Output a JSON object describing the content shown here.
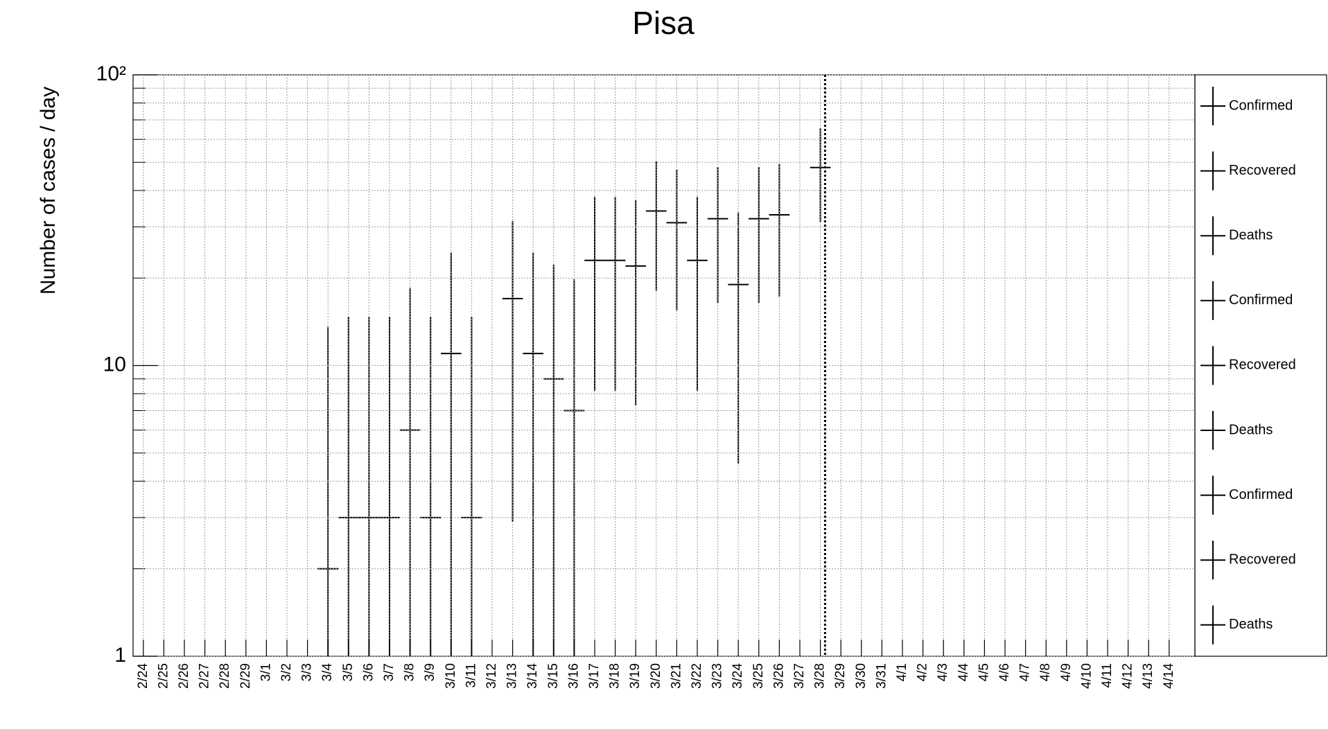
{
  "chart_data": {
    "type": "errorbar",
    "title": "Pisa",
    "y_label": "Number of cases / day",
    "log_y": true,
    "grid": true,
    "color": "#000000",
    "categories": [
      "2/24",
      "2/25",
      "2/26",
      "2/27",
      "2/28",
      "2/29",
      "3/1",
      "3/2",
      "3/3",
      "3/4",
      "3/5",
      "3/6",
      "3/7",
      "3/8",
      "3/9",
      "3/10",
      "3/11",
      "3/12",
      "3/13",
      "3/14",
      "3/15",
      "3/16",
      "3/17",
      "3/18",
      "3/19",
      "3/20",
      "3/21",
      "3/22",
      "3/23",
      "3/24",
      "3/25",
      "3/26",
      "3/27",
      "3/28",
      "3/29",
      "3/30",
      "3/31",
      "4/1",
      "4/2",
      "4/3",
      "4/4",
      "4/5",
      "4/6",
      "4/7",
      "4/8",
      "4/9",
      "4/10",
      "4/11",
      "4/12",
      "4/13",
      "4/14"
    ],
    "values": [
      null,
      null,
      null,
      null,
      null,
      null,
      null,
      null,
      null,
      2,
      3,
      3,
      3,
      6,
      3,
      11,
      3,
      null,
      17,
      11,
      9,
      7,
      23,
      23,
      22,
      34,
      31,
      23,
      32,
      19,
      32,
      33,
      null,
      48,
      null,
      null,
      null,
      null,
      null,
      null,
      null,
      null,
      null,
      null,
      null,
      null,
      null,
      null,
      null,
      null,
      null
    ],
    "error_high": [
      null,
      null,
      null,
      null,
      null,
      null,
      null,
      null,
      null,
      11.6,
      11.7,
      11.7,
      11.7,
      12.5,
      11.7,
      13.5,
      11.7,
      null,
      14.4,
      13.5,
      13.2,
      12.8,
      15.1,
      15.1,
      15.1,
      16.5,
      16.2,
      15.1,
      16.2,
      14.6,
      16.2,
      16.5,
      null,
      17.6
    ],
    "error_low": [
      null,
      null,
      null,
      null,
      null,
      null,
      null,
      null,
      null,
      1.5,
      2.5,
      2.5,
      2.5,
      5.5,
      2.5,
      10.5,
      2.5,
      null,
      14.1,
      10.5,
      8.5,
      6.5,
      14.8,
      14.8,
      14.7,
      15.9,
      15.5,
      14.8,
      15.6,
      14.4,
      15.6,
      15.7,
      null,
      16.8
    ],
    "ylim": [
      1,
      100
    ],
    "yticks": [
      1,
      10,
      {
        "value": 100,
        "label": "10²"
      }
    ],
    "yminorticks": [
      2,
      3,
      4,
      5,
      6,
      7,
      8,
      9,
      20,
      30,
      40,
      50,
      60,
      70,
      80,
      90
    ],
    "legend_entries": [
      "Confirmed",
      "Recovered",
      "Deaths",
      "Confirmed",
      "Recovered",
      "Deaths",
      "Confirmed",
      "Recovered",
      "Deaths"
    ]
  }
}
